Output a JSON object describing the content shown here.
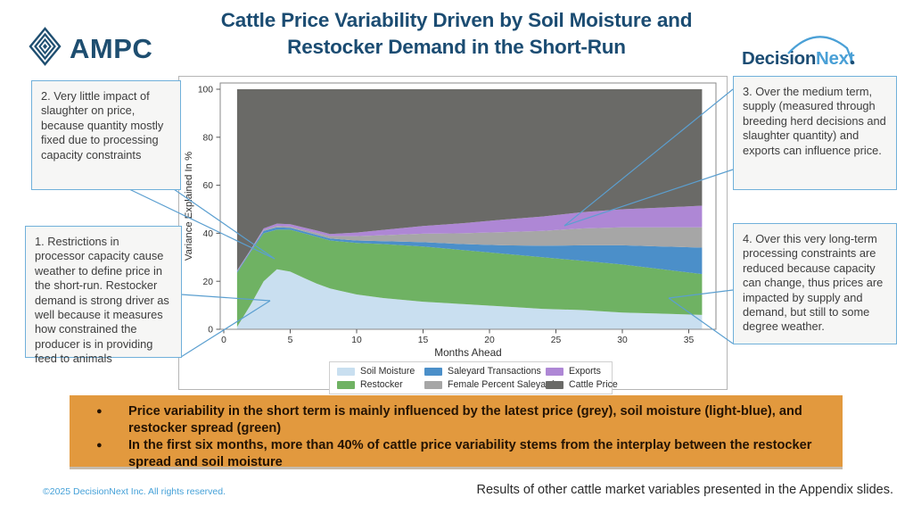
{
  "header": {
    "ampc_logo_text": "AMPC",
    "title_line1": "Cattle Price Variability Driven by Soil Moisture and",
    "title_line2": "Restocker Demand in the Short-Run",
    "decision_text": "Decision",
    "next_text": "Next"
  },
  "callouts": [
    {
      "text": "1. Restrictions in processor capacity cause weather to define price in the short-run. Restocker demand is strong driver as well because it measures how constrained the producer is in providing feed to animals"
    },
    {
      "text": "2. Very little impact of slaughter on price, because quantity mostly fixed due to processing capacity constraints"
    },
    {
      "text": "3. Over the medium term, supply (measured through breeding herd decisions and slaughter quantity) and exports can influence price."
    },
    {
      "text": "4. Over this very long-term processing constraints are reduced because capacity can change, thus prices are impacted by supply and demand, but still to some degree weather."
    }
  ],
  "chart_data": {
    "type": "area",
    "stacked": true,
    "xlabel": "Months Ahead",
    "ylabel": "Variance Explained In %",
    "xlim": [
      0,
      37
    ],
    "ylim": [
      0,
      100
    ],
    "x_ticks": [
      0,
      5,
      10,
      15,
      20,
      25,
      30,
      35
    ],
    "y_ticks": [
      0,
      20,
      40,
      60,
      80,
      100
    ],
    "grid": false,
    "legend_position": "bottom",
    "x": [
      1,
      2,
      3,
      4,
      5,
      6,
      7,
      8,
      10,
      12,
      15,
      18,
      21,
      24,
      27,
      30,
      33,
      36
    ],
    "series": [
      {
        "name": "Soil Moisture",
        "color": "#c9dff0",
        "values": [
          1,
          10,
          20,
          25,
          24,
          21.5,
          19,
          17,
          14.5,
          13,
          11.5,
          10.5,
          9.5,
          8.5,
          8,
          7,
          6.5,
          6
        ]
      },
      {
        "name": "Restocker",
        "color": "#6fb263",
        "values": [
          22.5,
          22,
          20,
          16.5,
          17.5,
          18.5,
          19.5,
          20,
          21.5,
          22.5,
          23,
          22.5,
          22,
          21.5,
          20.5,
          20,
          18.5,
          17
        ]
      },
      {
        "name": "Saleyard Transactions",
        "color": "#4b8fc9",
        "values": [
          0.5,
          0.5,
          1,
          1,
          0.8,
          0.8,
          0.8,
          0.8,
          1,
          1.2,
          1.8,
          2.5,
          3.5,
          4.8,
          6.5,
          8,
          9.5,
          11
        ]
      },
      {
        "name": "Female Percent Saleyard",
        "color": "#a6a6a6",
        "values": [
          0.2,
          0.2,
          0.3,
          0.5,
          0.5,
          0.6,
          0.8,
          1,
          1.8,
          2.5,
          3.5,
          4.5,
          5.5,
          6.2,
          7,
          7.5,
          8,
          8.5
        ]
      },
      {
        "name": "Exports",
        "color": "#ae87d5",
        "values": [
          0.3,
          0.3,
          0.7,
          1,
          1,
          1,
          1,
          0.9,
          1.5,
          2.2,
          3.2,
          4.2,
          5.2,
          6,
          6.8,
          7.5,
          8.2,
          9
        ]
      },
      {
        "name": "Cattle Price",
        "color": "#6a6a67",
        "values": [
          75.5,
          67,
          58,
          56,
          56.2,
          57.6,
          58.9,
          60.3,
          59.7,
          58.6,
          57,
          55.8,
          54.3,
          53,
          51.2,
          50,
          49.3,
          48.5
        ]
      }
    ],
    "legend_order": [
      [
        "Soil Moisture",
        "Saleyard Transactions",
        "Exports"
      ],
      [
        "Restocker",
        "Female Percent Saleyard",
        "Cattle Price"
      ]
    ]
  },
  "banner": {
    "bullets": [
      "Price variability in the short term is mainly influenced by the latest price (grey), soil moisture (light-blue), and restocker spread (green)",
      "In the first six months, more than 40% of cattle price variability stems from the interplay between the restocker spread and soil moisture"
    ]
  },
  "footer": {
    "copyright": "©2025 DecisionNext Inc. All rights reserved.",
    "note": "Results of other cattle market variables presented in the Appendix slides."
  },
  "colors": {
    "brand_navy": "#1b4c72",
    "brand_light_blue": "#4aa0d6",
    "callout_border": "#70b0da",
    "leader_line": "#5b9fd0",
    "banner_orange": "#e2993e"
  }
}
